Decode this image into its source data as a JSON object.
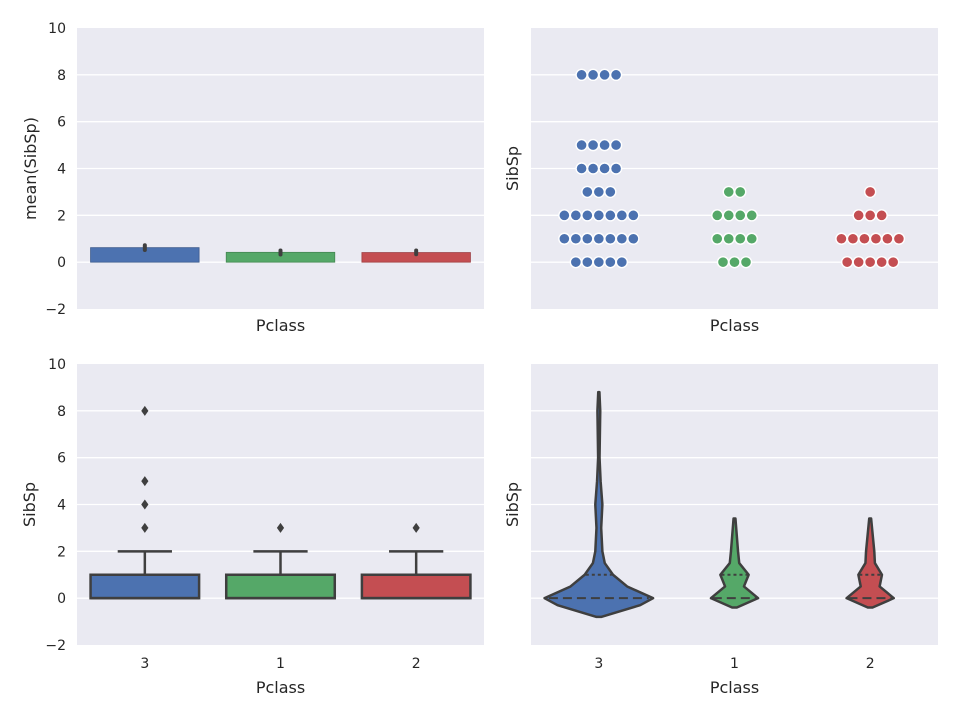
{
  "chart_data": [
    {
      "panel": "top-left",
      "type": "bar",
      "categories": [
        "3",
        "1",
        "2"
      ],
      "values": [
        0.62,
        0.42,
        0.41
      ],
      "ci": [
        [
          0.52,
          0.72
        ],
        [
          0.33,
          0.5
        ],
        [
          0.34,
          0.5
        ]
      ],
      "colors": [
        "#4c72b0",
        "#55a868",
        "#c44e52"
      ],
      "xlabel": "Pclass",
      "ylabel": "mean(SibSp)",
      "ylim": [
        -2,
        10
      ],
      "yticks": [
        "−2",
        "0",
        "2",
        "4",
        "6",
        "8",
        "10"
      ],
      "show_xticks": false,
      "grid": true
    },
    {
      "panel": "top-right",
      "type": "scatter",
      "subtype": "swarm",
      "categories": [
        "3",
        "1",
        "2"
      ],
      "colors": [
        "#4c72b0",
        "#55a868",
        "#c44e52"
      ],
      "values_by_category": [
        [
          0,
          1,
          2,
          3,
          4,
          5,
          8
        ],
        [
          0,
          1,
          2,
          3
        ],
        [
          0,
          1,
          2,
          3
        ]
      ],
      "xlabel": "Pclass",
      "ylabel": "SibSp",
      "ylim": [
        -2,
        10
      ],
      "show_xticks": false,
      "show_yticks": false,
      "grid": true
    },
    {
      "panel": "bottom-left",
      "type": "box",
      "categories": [
        "3",
        "1",
        "2"
      ],
      "colors": [
        "#4c72b0",
        "#55a868",
        "#c44e52"
      ],
      "boxes": [
        {
          "min": 0,
          "q1": 0,
          "median": 0,
          "q3": 1,
          "max": 2,
          "outliers": [
            3,
            4,
            5,
            8
          ]
        },
        {
          "min": 0,
          "q1": 0,
          "median": 0,
          "q3": 1,
          "max": 2,
          "outliers": [
            3
          ]
        },
        {
          "min": 0,
          "q1": 0,
          "median": 0,
          "q3": 1,
          "max": 2,
          "outliers": [
            3
          ]
        }
      ],
      "xlabel": "Pclass",
      "ylabel": "SibSp",
      "ylim": [
        -2,
        10
      ],
      "yticks": [
        "−2",
        "0",
        "2",
        "4",
        "6",
        "8",
        "10"
      ],
      "xticks": [
        "3",
        "1",
        "2"
      ],
      "grid": true
    },
    {
      "panel": "bottom-right",
      "type": "violin",
      "categories": [
        "3",
        "1",
        "2"
      ],
      "colors": [
        "#4c72b0",
        "#55a868",
        "#c44e52"
      ],
      "violins": [
        {
          "profile": [
            [
              -0.8,
              0.02
            ],
            [
              -0.3,
              0.35
            ],
            [
              0,
              0.46
            ],
            [
              0.5,
              0.24
            ],
            [
              1,
              0.12
            ],
            [
              1.5,
              0.05
            ],
            [
              2,
              0.03
            ],
            [
              3,
              0.02
            ],
            [
              4,
              0.03
            ],
            [
              5,
              0.015
            ],
            [
              6,
              0.006
            ],
            [
              8,
              0.012
            ],
            [
              8.8,
              0.005
            ]
          ],
          "median": 0,
          "q3": 1
        },
        {
          "profile": [
            [
              -0.4,
              0.02
            ],
            [
              0,
              0.2
            ],
            [
              0.5,
              0.08
            ],
            [
              1,
              0.12
            ],
            [
              1.5,
              0.04
            ],
            [
              2,
              0.03
            ],
            [
              3.4,
              0.008
            ]
          ],
          "median": 0,
          "q3": 1
        },
        {
          "profile": [
            [
              -0.4,
              0.02
            ],
            [
              0,
              0.2
            ],
            [
              0.5,
              0.08
            ],
            [
              1,
              0.1
            ],
            [
              1.5,
              0.04
            ],
            [
              2,
              0.035
            ],
            [
              3.4,
              0.008
            ]
          ],
          "median": 0,
          "q3": 1
        }
      ],
      "xlabel": "Pclass",
      "ylabel": "SibSp",
      "ylim": [
        -2,
        10
      ],
      "xticks": [
        "3",
        "1",
        "2"
      ],
      "show_yticks": false,
      "grid": true
    }
  ]
}
